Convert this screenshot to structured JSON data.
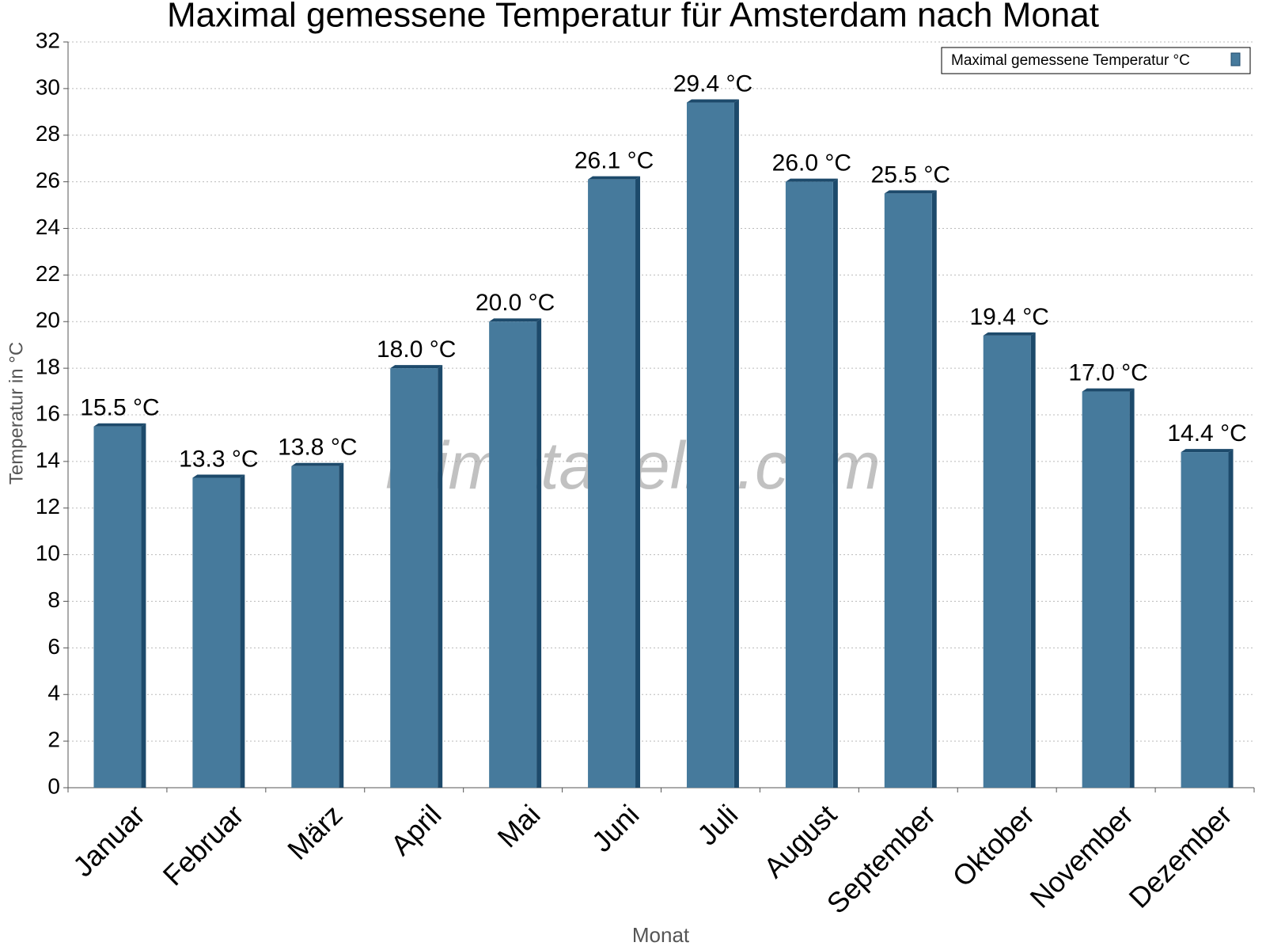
{
  "chart_data": {
    "type": "bar",
    "title": "Maximal gemessene Temperatur für Amsterdam nach Monat",
    "x_label": "Monat",
    "y_label": "Temperatur in °C",
    "annotation": "klimatabelle.com",
    "categories": [
      "Januar",
      "Februar",
      "März",
      "April",
      "Mai",
      "Juni",
      "Juli",
      "August",
      "September",
      "Oktober",
      "November",
      "Dezember"
    ],
    "series": [
      {
        "name": "Maximal gemessene Temperatur °C",
        "color": "#467a9c",
        "values": [
          15.5,
          13.3,
          13.8,
          18.0,
          20.0,
          26.1,
          29.4,
          26.0,
          25.5,
          19.4,
          17.0,
          14.4
        ],
        "value_labels": [
          "15.5 °C",
          "13.3 °C",
          "13.8 °C",
          "18.0 °C",
          "20.0 °C",
          "26.1 °C",
          "29.4 °C",
          "26.0 °C",
          "25.5 °C",
          "19.4 °C",
          "17.0 °C",
          "14.4 °C"
        ]
      }
    ],
    "ylim": [
      0,
      32
    ],
    "yticks": [
      0,
      2,
      4,
      6,
      8,
      10,
      12,
      14,
      16,
      18,
      20,
      22,
      24,
      26,
      28,
      30,
      32
    ],
    "grid": true,
    "legend": "top-right"
  }
}
